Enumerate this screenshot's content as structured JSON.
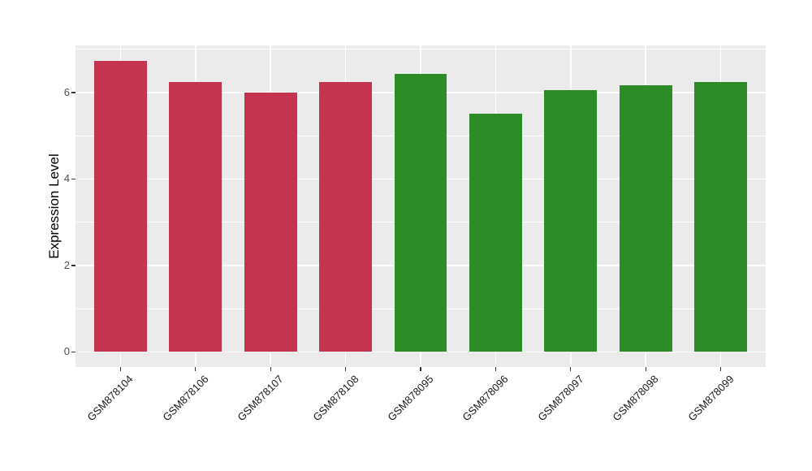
{
  "chart_data": {
    "type": "bar",
    "title": "",
    "xlabel": "",
    "ylabel": "Expression Level",
    "categories": [
      "GSM878104",
      "GSM878106",
      "GSM878107",
      "GSM878108",
      "GSM878095",
      "GSM878096",
      "GSM878097",
      "GSM878098",
      "GSM878099"
    ],
    "values": [
      6.74,
      6.24,
      6.0,
      6.24,
      6.44,
      5.51,
      6.06,
      6.17,
      6.24
    ],
    "bar_colors": [
      "#C43350",
      "#C43350",
      "#C43350",
      "#C43350",
      "#2C8C25",
      "#2C8C25",
      "#2C8C25",
      "#2C8C25",
      "#2C8C25"
    ],
    "groups": [
      {
        "name": "group-red",
        "color": "#C43350",
        "samples": [
          "GSM878104",
          "GSM878106",
          "GSM878107",
          "GSM878108"
        ]
      },
      {
        "name": "group-green",
        "color": "#2C8C25",
        "samples": [
          "GSM878095",
          "GSM878096",
          "GSM878097",
          "GSM878098",
          "GSM878099"
        ]
      }
    ],
    "yticks": [
      0,
      2,
      4,
      6
    ],
    "minor_yticks": [
      1,
      3,
      5,
      7
    ],
    "ylim": [
      -0.35,
      7.09
    ],
    "bar_width_frac": 0.7,
    "grid": true,
    "legend_position": "none",
    "panel_bg": "#EBEBEB",
    "grid_color": "#FFFFFF",
    "outer_bg": "#FFFFFF",
    "tick_color": "#333333"
  }
}
